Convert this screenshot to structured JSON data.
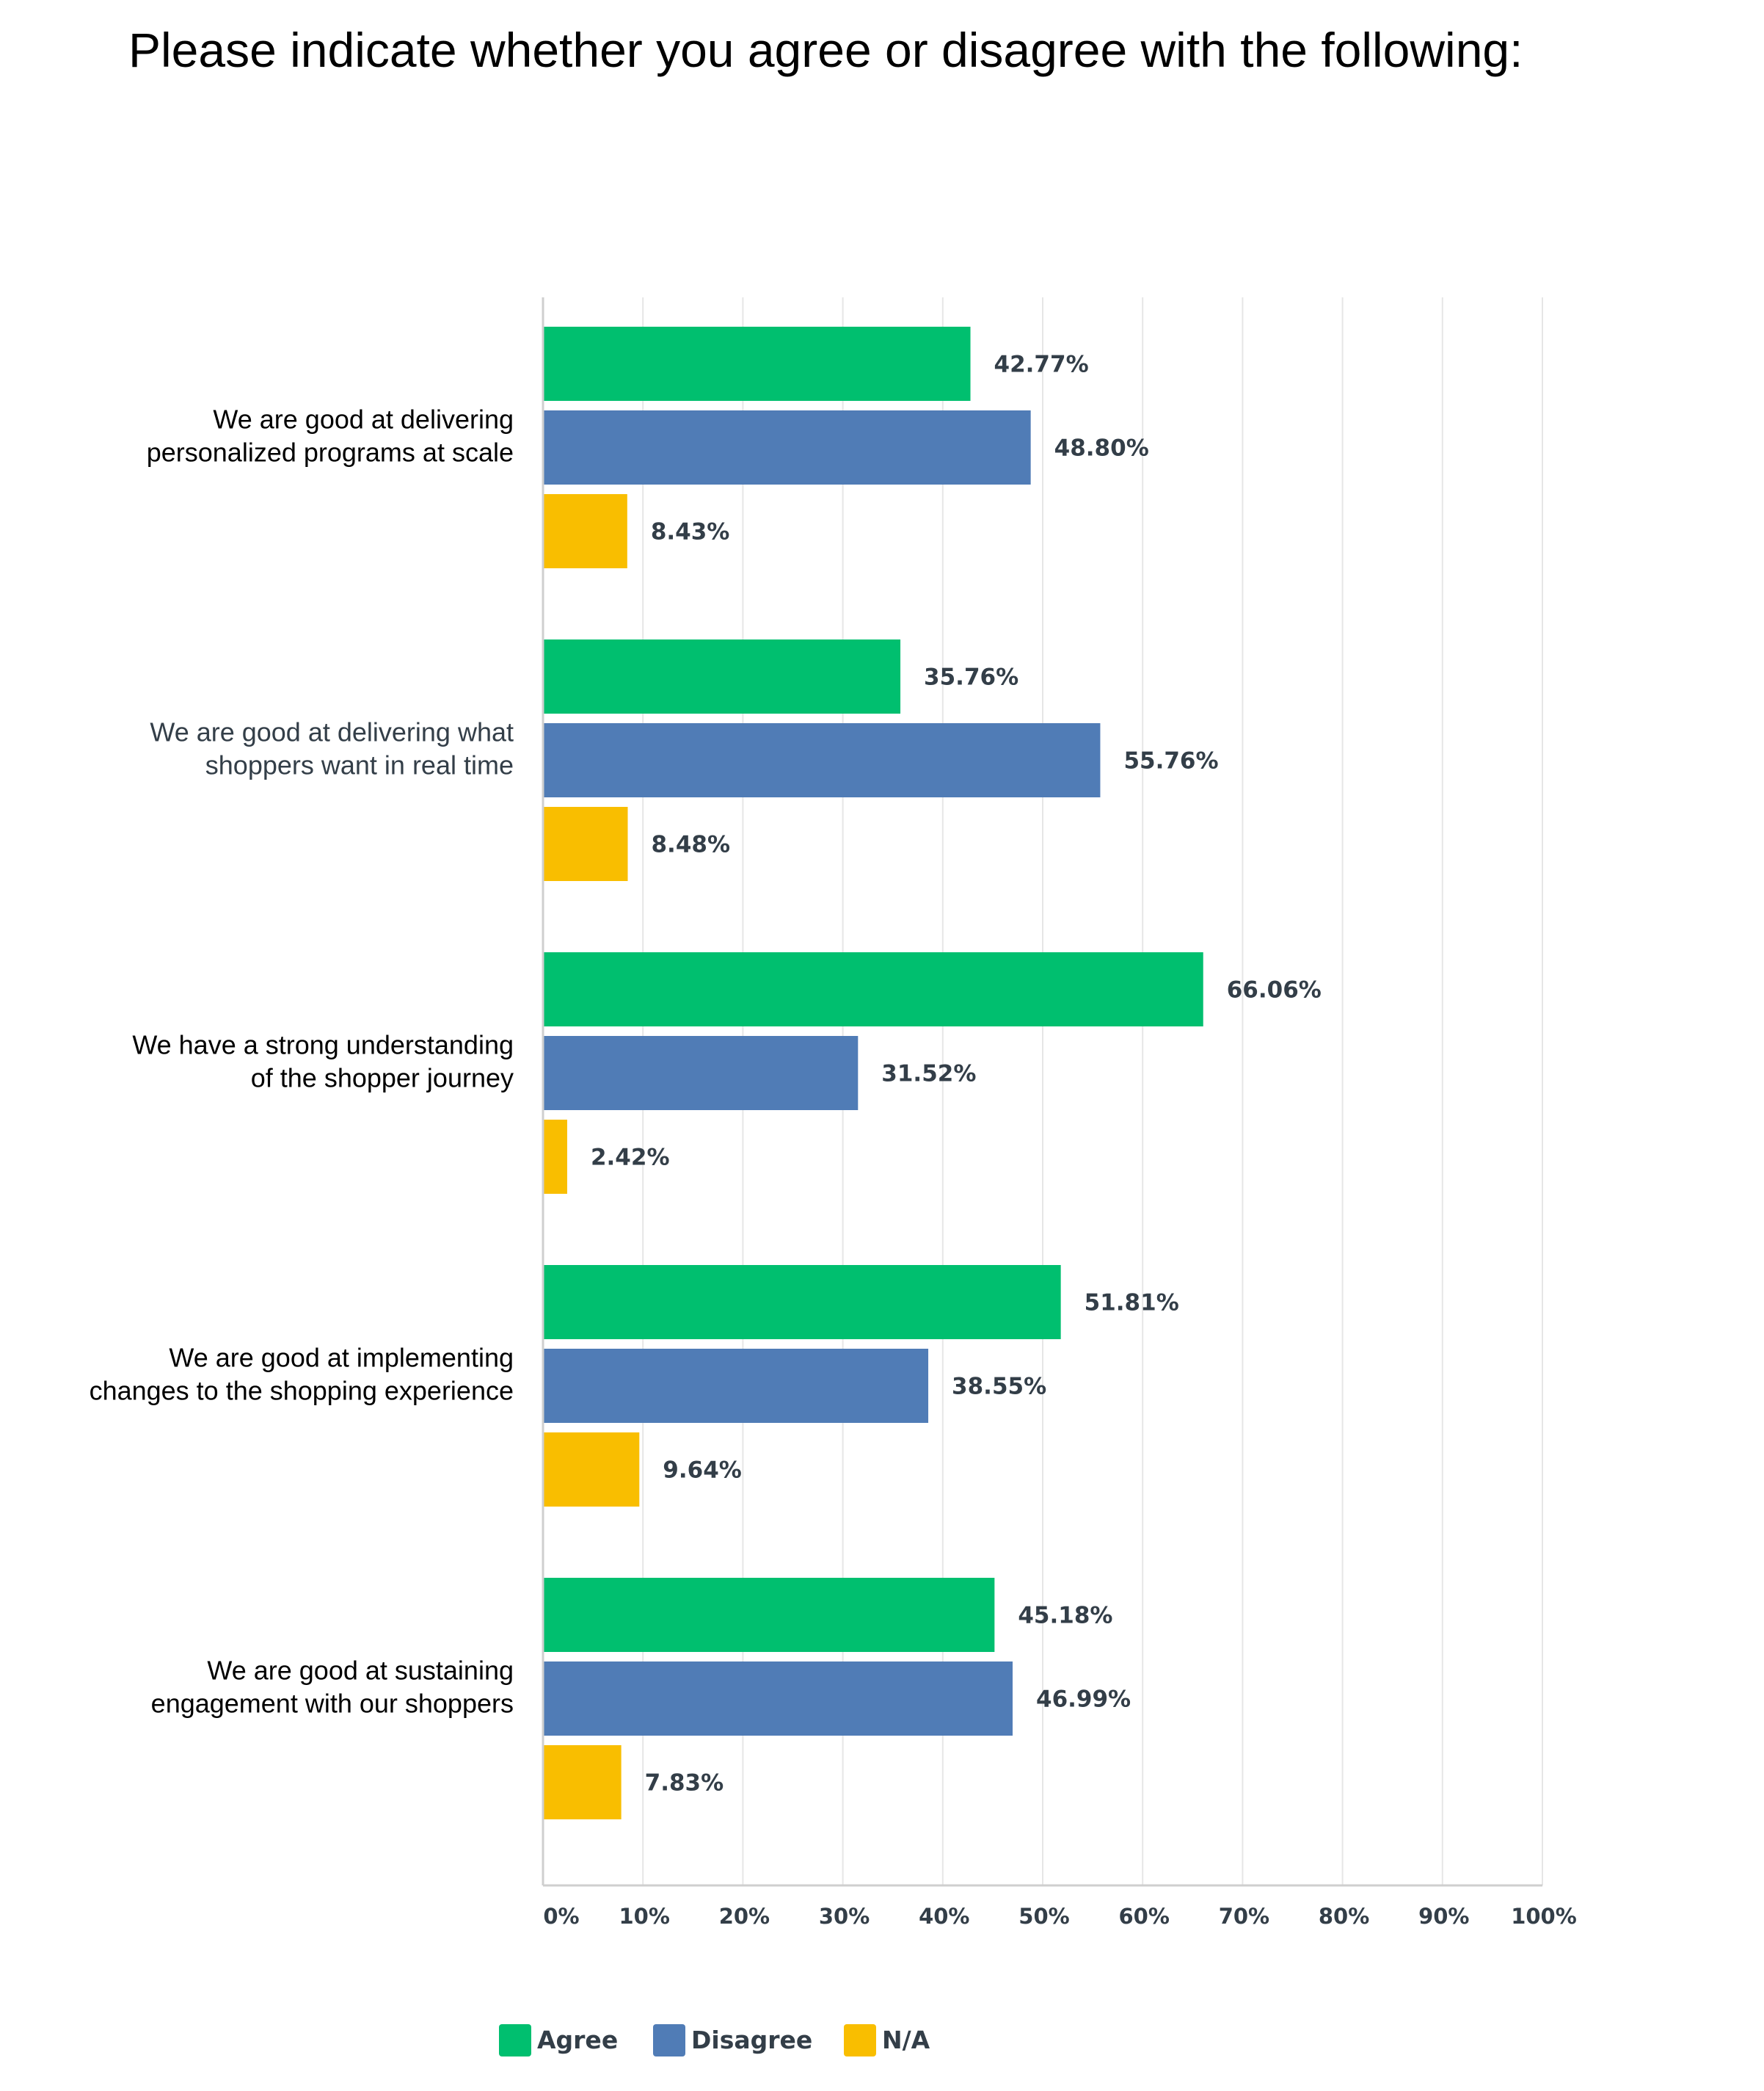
{
  "chart_data": {
    "type": "bar",
    "orientation": "horizontal",
    "title": "Please indicate whether you agree or disagree with the following:",
    "categories": [
      [
        "We are good at delivering",
        "personalized programs at scale"
      ],
      [
        "We are good at delivering what",
        "shoppers want in real time"
      ],
      [
        "We have a strong understanding",
        "of the shopper journey"
      ],
      [
        "We are good at implementing",
        "changes to the shopping experience"
      ],
      [
        "We are good at sustaining",
        "engagement with our shoppers"
      ]
    ],
    "series": [
      {
        "name": "Agree",
        "color": "#00bf6f",
        "values": [
          42.77,
          35.76,
          66.06,
          51.81,
          45.18
        ]
      },
      {
        "name": "Disagree",
        "color": "#507cb6",
        "values": [
          48.8,
          55.76,
          31.52,
          38.55,
          46.99
        ]
      },
      {
        "name": "N/A",
        "color": "#f9be00",
        "values": [
          8.43,
          8.48,
          2.42,
          9.64,
          7.83
        ]
      }
    ],
    "value_labels": [
      [
        "42.77%",
        "48.80%",
        "8.43%"
      ],
      [
        "35.76%",
        "55.76%",
        "8.48%"
      ],
      [
        "66.06%",
        "31.52%",
        "2.42%"
      ],
      [
        "51.81%",
        "38.55%",
        "9.64%"
      ],
      [
        "45.18%",
        "46.99%",
        "7.83%"
      ]
    ],
    "xlim": [
      0,
      100
    ],
    "x_ticks": [
      "0%",
      "10%",
      "20%",
      "30%",
      "40%",
      "50%",
      "60%",
      "70%",
      "80%",
      "90%",
      "100%"
    ],
    "grid": true,
    "legend": "bottom"
  }
}
